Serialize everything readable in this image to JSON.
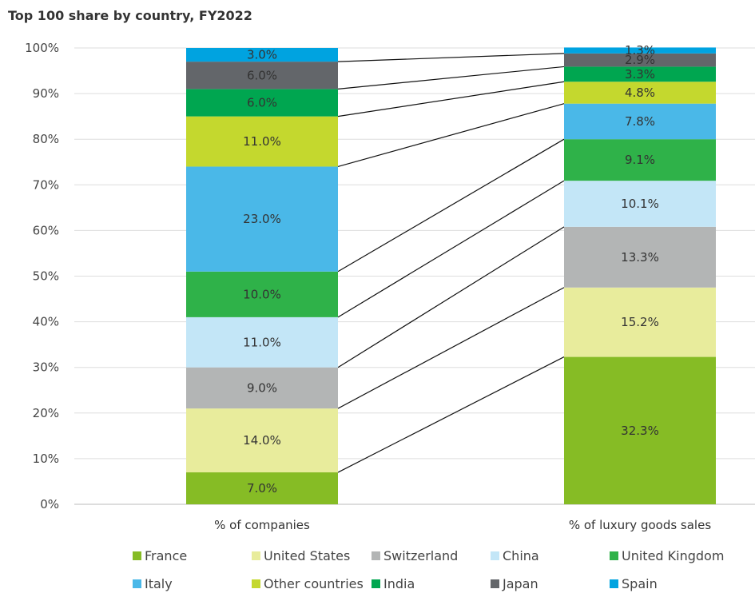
{
  "title": "Top 100 share by country, FY2022",
  "chart_data": {
    "type": "bar",
    "stacked": true,
    "title": "Top 100 share by country, FY2022",
    "categories": [
      "% of companies",
      "% of luxury goods sales"
    ],
    "y_ticks": [
      "0%",
      "10%",
      "20%",
      "30%",
      "40%",
      "50%",
      "60%",
      "70%",
      "80%",
      "90%",
      "100%"
    ],
    "ylim": [
      0,
      100
    ],
    "grid": true,
    "legend_position": "bottom",
    "connectors": true,
    "series": [
      {
        "name": "France",
        "color": "#86bc25",
        "values": [
          7.0,
          32.3
        ],
        "labels": [
          "7.0%",
          "32.3%"
        ]
      },
      {
        "name": "United States",
        "color": "#e8ec9c",
        "values": [
          14.0,
          15.2
        ],
        "labels": [
          "14.0%",
          "15.2%"
        ]
      },
      {
        "name": "Switzerland",
        "color": "#b3b5b5",
        "values": [
          9.0,
          13.3
        ],
        "labels": [
          "9.0%",
          "13.3%"
        ]
      },
      {
        "name": "China",
        "color": "#c3e6f7",
        "values": [
          11.0,
          10.1
        ],
        "labels": [
          "11.0%",
          "10.1%"
        ]
      },
      {
        "name": "United Kingdom",
        "color": "#2fb249",
        "values": [
          10.0,
          9.1
        ],
        "labels": [
          "10.0%",
          "9.1%"
        ]
      },
      {
        "name": "Italy",
        "color": "#4ab8e8",
        "values": [
          23.0,
          7.8
        ],
        "labels": [
          "23.0%",
          "7.8%"
        ]
      },
      {
        "name": "Other countries",
        "color": "#c4d82e",
        "values": [
          11.0,
          4.8
        ],
        "labels": [
          "11.0%",
          "4.8%"
        ]
      },
      {
        "name": "India",
        "color": "#00a650",
        "values": [
          6.0,
          3.3
        ],
        "labels": [
          "6.0%",
          "3.3%"
        ]
      },
      {
        "name": "Japan",
        "color": "#63666a",
        "values": [
          6.0,
          2.9
        ],
        "labels": [
          "6.0%",
          "2.9%"
        ]
      },
      {
        "name": "Spain",
        "color": "#00a3e0",
        "values": [
          3.0,
          1.3
        ],
        "labels": [
          "3.0%",
          "1.3%"
        ]
      }
    ]
  }
}
